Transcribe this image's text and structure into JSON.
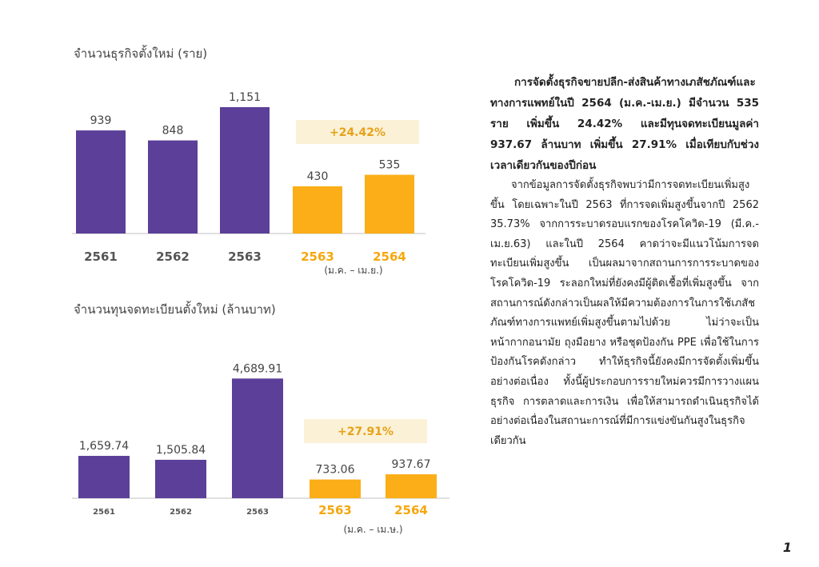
{
  "chart_data": [
    {
      "type": "bar",
      "title": "จำนวนธุรกิจตั้งใหม่ (ราย)",
      "categories": [
        "2561",
        "2562",
        "2563",
        "2563",
        "2564"
      ],
      "values": [
        939,
        848,
        1151,
        430,
        535
      ],
      "value_labels": [
        "939",
        "848",
        "1,151",
        "430",
        "535"
      ],
      "colors": [
        "#5b3f98",
        "#5b3f98",
        "#5b3f98",
        "#fbae17",
        "#fbae17"
      ],
      "group_label": "(ม.ค. – เม.ย.)",
      "growth_label": "+24.42%",
      "ylim": [
        0,
        1180
      ]
    },
    {
      "type": "bar",
      "title": "จำนวนทุนจดทะเบียนตั้งใหม่ (ล้านบาท)",
      "categories": [
        "2561",
        "2562",
        "2563",
        "2563",
        "2564"
      ],
      "values": [
        1659.74,
        1505.84,
        4689.91,
        733.06,
        937.67
      ],
      "value_labels": [
        "1,659.74",
        "1,505.84",
        "4,689.91",
        "733.06",
        "937.67"
      ],
      "colors": [
        "#5b3f98",
        "#5b3f98",
        "#5b3f98",
        "#fbae17",
        "#fbae17"
      ],
      "group_label": "(ม.ค. – เม.ษ.)",
      "growth_label": "+27.91%",
      "ylim": [
        0,
        4700
      ]
    }
  ],
  "article": {
    "lead": "การจัดตั้งธุรกิจขายปลีก-ส่งสินค้าทางเภสัชภัณฑ์และทางการแพทย์ในปี 2564 (ม.ค.-เม.ย.) มีจำนวน 535 ราย เพิ่มขึ้น 24.42% และมีทุนจดทะเบียนมูลค่า 937.67 ล้านบาท เพิ่มขึ้น 27.91% เมื่อเทียบกับช่วงเวลาเดียวกันของปีก่อน",
    "body": "จากข้อมูลการจัดตั้งธุรกิจพบว่ามีการจดทะเบียนเพิ่มสูงขึ้น โดยเฉพาะในปี 2563 ที่การจดเพิ่มสูงขึ้นจากปี 2562 35.73% จากการระบาดรอบแรกของโรคโควิด-19 (มี.ค.-เม.ย.63) และในปี 2564 คาดว่าจะมีแนวโน้มการจดทะเบียนเพิ่มสูงขึ้น เป็นผลมาจากสถานการการระบาดของโรคโควิด-19 ระลอกใหม่ที่ยังคงมีผู้ติดเชื้อที่เพิ่มสูงขึ้น จากสถานการณ์ดังกล่าวเป็นผลให้มีความต้องการในการใช้เภสัชภัณฑ์ทางการแพทย์เพิ่มสูงขึ้นตามไปด้วย ไม่ว่าจะเป็นหน้ากากอนามัย ถุงมือยาง หรือชุดป้องกัน PPE เพื่อใช้ในการป้องกันโรคดังกล่าว ทำให้ธุรกิจนี้ยังคงมีการจัดตั้งเพิ่มขึ้นอย่างต่อเนื่อง ทั้งนี้ผู้ประกอบการรายใหม่ควรมีการวางแผนธุรกิจ การตลาดและการเงิน เพื่อให้สามารถดำเนินธุรกิจได้อย่างต่อเนื่องในสถานะการณ์ที่มีการแข่งขันกันสูงในธุรกิจเดียวกัน"
  },
  "page_number": "1"
}
